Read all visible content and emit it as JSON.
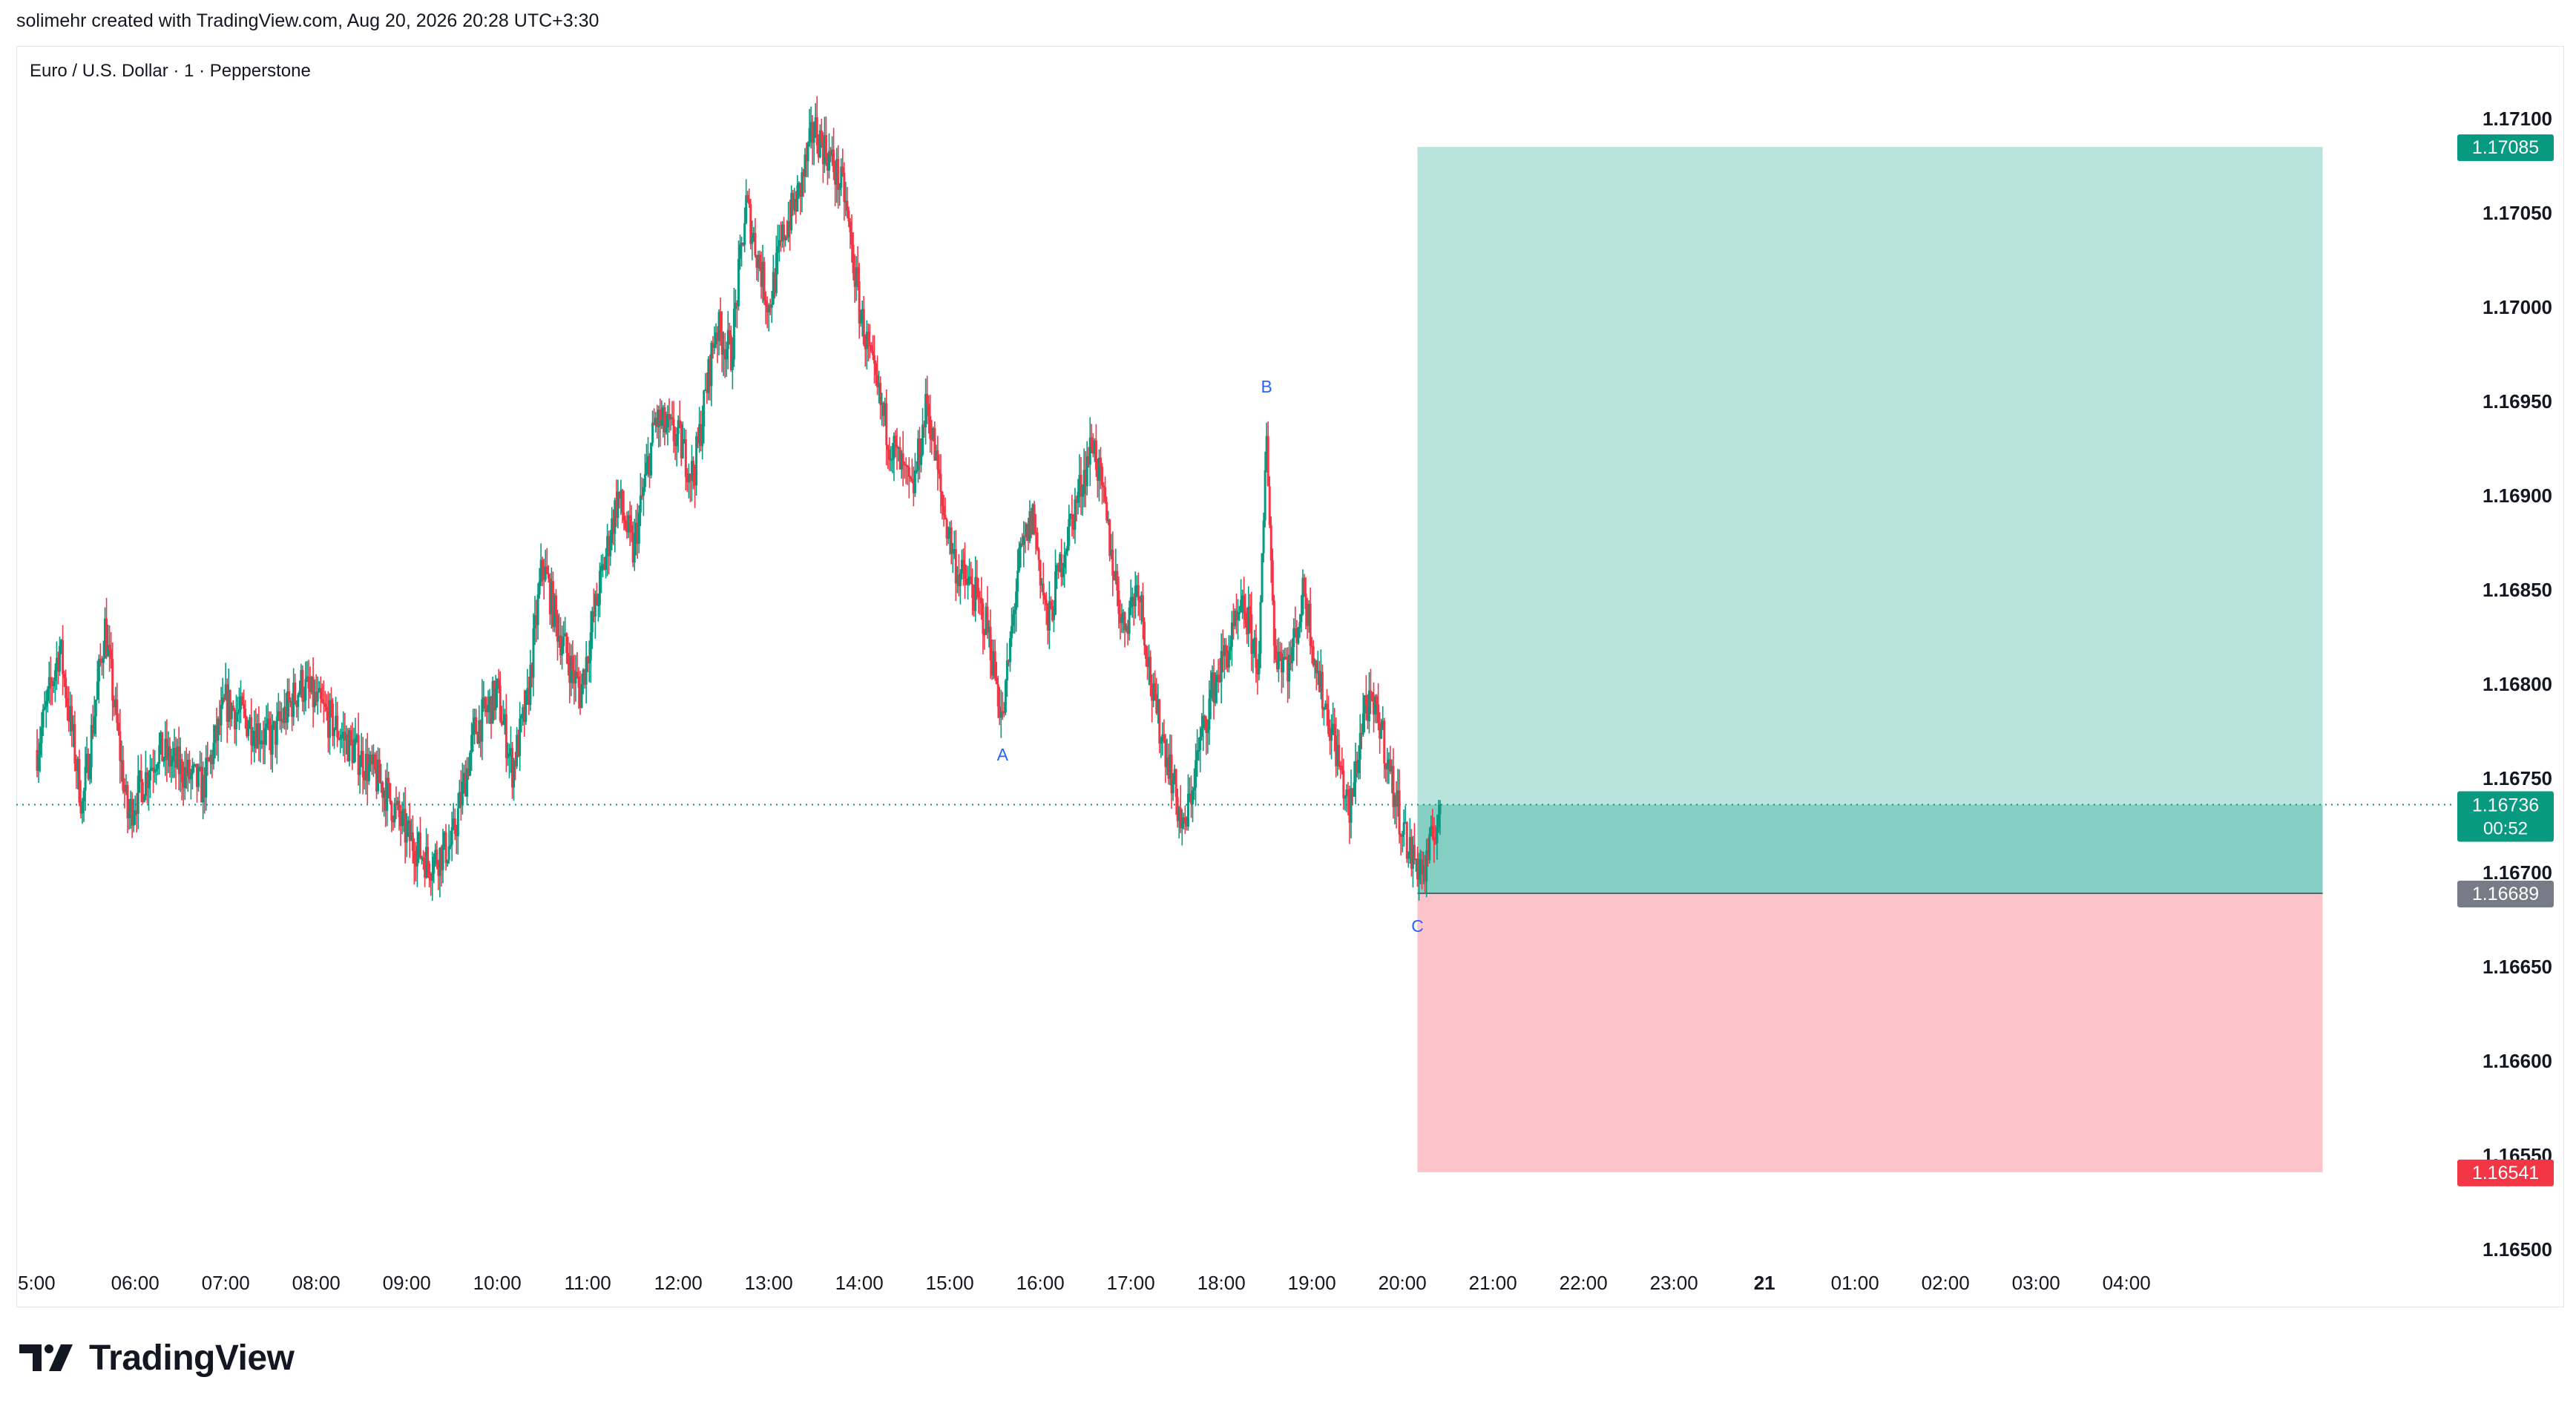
{
  "header": {
    "attribution": "solimehr created with TradingView.com, Aug 20, 2026 20:28 UTC+3:30"
  },
  "symbol": {
    "title": "Euro / U.S. Dollar · 1 · Pepperstone"
  },
  "branding": {
    "logo_text": "TradingView"
  },
  "chart_data": {
    "type": "candlestick",
    "symbol": "EURUSD",
    "interval": "1",
    "x_ticks": [
      "5:00",
      "06:00",
      "07:00",
      "08:00",
      "09:00",
      "10:00",
      "11:00",
      "12:00",
      "13:00",
      "14:00",
      "15:00",
      "16:00",
      "17:00",
      "18:00",
      "19:00",
      "20:00",
      "21:00",
      "22:00",
      "23:00",
      "21",
      "01:00",
      "02:00",
      "03:00",
      "04:00"
    ],
    "y_ticks": [
      "1.17100",
      "1.17050",
      "1.17000",
      "1.16950",
      "1.16900",
      "1.16850",
      "1.16800",
      "1.16750",
      "1.16700",
      "1.16650",
      "1.16600",
      "1.16550",
      "1.16500"
    ],
    "ylim": [
      1.165,
      1.171
    ],
    "price_path": [
      [
        "04:55",
        1.16765
      ],
      [
        "05:10",
        1.1682
      ],
      [
        "05:25",
        1.16735
      ],
      [
        "05:40",
        1.1683
      ],
      [
        "05:55",
        1.1673
      ],
      [
        "06:15",
        1.16765
      ],
      [
        "06:45",
        1.16745
      ],
      [
        "07:00",
        1.1679
      ],
      [
        "07:30",
        1.1677
      ],
      [
        "07:50",
        1.168
      ],
      [
        "08:20",
        1.1677
      ],
      [
        "08:45",
        1.16745
      ],
      [
        "09:00",
        1.1672
      ],
      [
        "09:15",
        1.16705
      ],
      [
        "09:30",
        1.16715
      ],
      [
        "09:45",
        1.16775
      ],
      [
        "10:00",
        1.16795
      ],
      [
        "10:10",
        1.16755
      ],
      [
        "10:20",
        1.1679
      ],
      [
        "10:30",
        1.16865
      ],
      [
        "10:40",
        1.1683
      ],
      [
        "10:55",
        1.16795
      ],
      [
        "11:05",
        1.1684
      ],
      [
        "11:20",
        1.169
      ],
      [
        "11:30",
        1.1687
      ],
      [
        "11:45",
        1.1694
      ],
      [
        "12:00",
        1.1693
      ],
      [
        "12:10",
        1.1691
      ],
      [
        "12:25",
        1.1699
      ],
      [
        "12:35",
        1.16975
      ],
      [
        "12:45",
        1.17055
      ],
      [
        "13:00",
        1.17
      ],
      [
        "13:10",
        1.1704
      ],
      [
        "13:20",
        1.1706
      ],
      [
        "13:30",
        1.17095
      ],
      [
        "13:40",
        1.1708
      ],
      [
        "13:50",
        1.1706
      ],
      [
        "14:00",
        1.17
      ],
      [
        "14:10",
        1.1696
      ],
      [
        "14:20",
        1.1693
      ],
      [
        "14:35",
        1.169
      ],
      [
        "14:45",
        1.1695
      ],
      [
        "14:55",
        1.16895
      ],
      [
        "15:05",
        1.1686
      ],
      [
        "15:15",
        1.1685
      ],
      [
        "15:25",
        1.1683
      ],
      [
        "15:35",
        1.1678
      ],
      [
        "15:45",
        1.1686
      ],
      [
        "15:55",
        1.1689
      ],
      [
        "16:05",
        1.1683
      ],
      [
        "16:15",
        1.1687
      ],
      [
        "16:25",
        1.169
      ],
      [
        "16:35",
        1.1693
      ],
      [
        "16:45",
        1.1688
      ],
      [
        "16:55",
        1.1683
      ],
      [
        "17:05",
        1.16855
      ],
      [
        "17:15",
        1.1679
      ],
      [
        "17:25",
        1.1676
      ],
      [
        "17:35",
        1.1672
      ],
      [
        "17:45",
        1.16765
      ],
      [
        "17:55",
        1.168
      ],
      [
        "18:05",
        1.1682
      ],
      [
        "18:15",
        1.1684
      ],
      [
        "18:25",
        1.1681
      ],
      [
        "18:30",
        1.16935
      ],
      [
        "18:35",
        1.1682
      ],
      [
        "18:45",
        1.1681
      ],
      [
        "18:55",
        1.1685
      ],
      [
        "19:05",
        1.168
      ],
      [
        "19:15",
        1.1677
      ],
      [
        "19:25",
        1.1673
      ],
      [
        "19:35",
        1.1679
      ],
      [
        "19:45",
        1.1678
      ],
      [
        "19:55",
        1.1674
      ],
      [
        "20:05",
        1.1671
      ],
      [
        "20:15",
        1.167
      ],
      [
        "20:25",
        1.16736
      ]
    ],
    "annotations": [
      {
        "label": "A",
        "x": "15:35",
        "price": 1.1678
      },
      {
        "label": "B",
        "x": "18:30",
        "price": 1.16935
      },
      {
        "label": "C",
        "x": "20:10",
        "price": 1.16689
      }
    ],
    "position": {
      "type": "long",
      "start": "20:10",
      "end": "30:10",
      "entry": 1.16689,
      "target": 1.17085,
      "stop": 1.16541
    },
    "last_price": {
      "price": 1.16736,
      "label": "1.16736",
      "countdown": "00:52"
    },
    "price_tags": [
      {
        "label": "1.17085",
        "price": 1.17085,
        "color": "#089981"
      },
      {
        "label": "1.16689",
        "price": 1.16689,
        "color": "#787b86"
      },
      {
        "label": "1.16541",
        "price": 1.16541,
        "color": "#f23645"
      }
    ],
    "colors": {
      "up": "#089981",
      "down": "#f23645",
      "profit_zone": "#b9e3dd",
      "loss_zone": "#fcc4ca",
      "overlap_zone": "#85cfc2",
      "label": "#2962ff",
      "axis_text": "#131722"
    }
  }
}
